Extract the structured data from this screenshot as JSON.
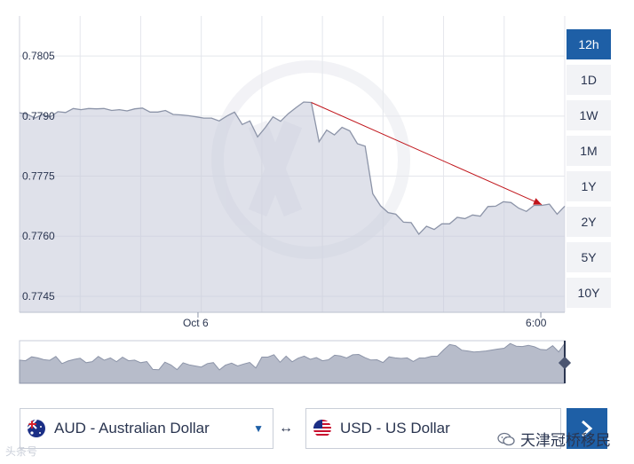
{
  "chart_data": {
    "type": "area",
    "title": "",
    "xlabel": "",
    "ylabel": "",
    "ylim": [
      0.7741,
      0.7815
    ],
    "y_ticks": [
      "0.7805",
      "0.7790",
      "0.7775",
      "0.7760",
      "0.7745"
    ],
    "x_ticks": [
      "Oct 6",
      "6:00"
    ],
    "series": [
      {
        "values": [
          0.77908,
          0.77905,
          0.77895,
          0.77904,
          0.77898,
          0.77911,
          0.77909,
          0.77919,
          0.77916,
          0.77919,
          0.77918,
          0.77919,
          0.77914,
          0.77916,
          0.77913,
          0.77918,
          0.7792,
          0.7791,
          0.7791,
          0.77914,
          0.77904,
          0.77903,
          0.77901,
          0.77898,
          0.77895,
          0.77895,
          0.77888,
          0.779,
          0.7791,
          0.77879,
          0.77888,
          0.77848,
          0.77871,
          0.77898,
          0.77887,
          0.77906,
          0.77921,
          0.77935,
          0.77934,
          0.77836,
          0.77865,
          0.77853,
          0.77872,
          0.77863,
          0.77831,
          0.77825,
          0.77706,
          0.77676,
          0.77659,
          0.77655,
          0.77635,
          0.77634,
          0.77605,
          0.77625,
          0.77617,
          0.77631,
          0.77631,
          0.77647,
          0.77644,
          0.77653,
          0.7765,
          0.77674,
          0.77675,
          0.77686,
          0.77684,
          0.7767,
          0.77662,
          0.77677,
          0.77677,
          0.7768,
          0.77655,
          0.77675
        ]
      }
    ],
    "annotation": {
      "type": "arrow",
      "from": {
        "index": 38,
        "value": 0.77934
      },
      "to": {
        "index": 68,
        "value": 0.77679
      },
      "color": "#c0141a"
    },
    "grid": true,
    "legend": "none",
    "colors": {
      "line": "#8c94a8",
      "fill": "#c5c9d8",
      "accent": "#1e5fa6",
      "grid": "#e4e6ec"
    }
  },
  "ranges": [
    "12h",
    "1D",
    "1W",
    "1M",
    "1Y",
    "2Y",
    "5Y",
    "10Y"
  ],
  "active_range": "12h",
  "from_currency": {
    "label": "AUD - Australian Dollar",
    "flag": "flag-au-icon"
  },
  "to_currency": {
    "label": "USD - US Dollar",
    "flag": "flag-us-icon"
  },
  "swap_symbol": "↔",
  "wechat_name": "天津冠桥移民",
  "watermark_left": "头条号"
}
